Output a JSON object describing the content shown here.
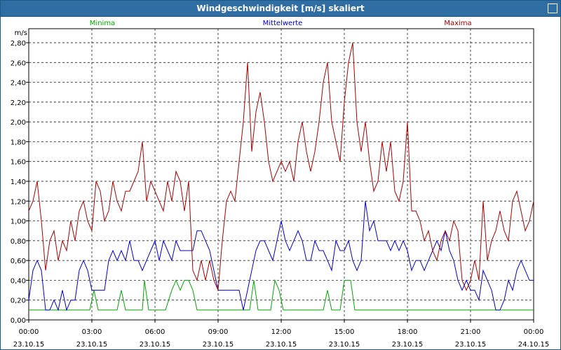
{
  "window": {
    "title": "Windgeschwindigkeit [m/s] skaliert"
  },
  "chart_data": {
    "type": "line",
    "title": "Windgeschwindigkeit [m/s] skaliert",
    "ylabel": "m/s",
    "xlabel": "",
    "ylim": [
      0,
      2.8
    ],
    "yticks": [
      0,
      0.2,
      0.4,
      0.6,
      0.8,
      1.0,
      1.2,
      1.4,
      1.6,
      1.8,
      2.0,
      2.2,
      2.4,
      2.6,
      2.8
    ],
    "ytick_labels": [
      "0,00",
      "0,20",
      "0,40",
      "0,60",
      "0,80",
      "1,00",
      "1,20",
      "1,40",
      "1,60",
      "1,80",
      "2,00",
      "2,20",
      "2,40",
      "2,60",
      "2,80"
    ],
    "xlim": [
      0,
      24
    ],
    "xticks": [
      0,
      3,
      6,
      9,
      12,
      15,
      18,
      21,
      24
    ],
    "xtick_times": [
      "00:00",
      "03:00",
      "06:00",
      "09:00",
      "12:00",
      "15:00",
      "18:00",
      "21:00",
      "00:00"
    ],
    "xtick_dates": [
      "23.10.15",
      "23.10.15",
      "23.10.15",
      "23.10.15",
      "23.10.15",
      "23.10.15",
      "23.10.15",
      "23.10.15",
      "24.10.15"
    ],
    "grid": true,
    "legend_position": "top",
    "series": [
      {
        "name": "Minima",
        "color": "#00aa00",
        "x": [
          0,
          2.9,
          3.1,
          3.3,
          4.2,
          4.4,
          4.6,
          5.4,
          5.5,
          5.7,
          6.5,
          6.8,
          7.0,
          7.2,
          7.4,
          7.6,
          7.8,
          8.0,
          10.5,
          10.7,
          10.9,
          11.5,
          11.7,
          11.9,
          12.1,
          12.3,
          14.0,
          14.2,
          14.4,
          14.8,
          15.0,
          15.3,
          15.5,
          24.0
        ],
        "values": [
          0.1,
          0.1,
          0.3,
          0.1,
          0.1,
          0.3,
          0.1,
          0.1,
          0.4,
          0.1,
          0.1,
          0.3,
          0.4,
          0.3,
          0.4,
          0.4,
          0.3,
          0.1,
          0.1,
          0.4,
          0.1,
          0.1,
          0.4,
          0.3,
          0.1,
          0.1,
          0.1,
          0.3,
          0.1,
          0.1,
          0.4,
          0.4,
          0.1,
          0.1
        ]
      },
      {
        "name": "Mittelwerte",
        "color": "#0000cc",
        "x": [
          0,
          0.2,
          0.4,
          0.6,
          0.8,
          1.0,
          1.2,
          1.4,
          1.6,
          1.8,
          2.0,
          2.2,
          2.4,
          2.6,
          2.8,
          3.0,
          3.2,
          3.4,
          3.6,
          3.8,
          4.0,
          4.2,
          4.4,
          4.6,
          4.8,
          5.0,
          5.2,
          5.4,
          5.6,
          5.8,
          6.0,
          6.2,
          6.4,
          6.6,
          6.8,
          7.0,
          7.2,
          7.4,
          7.6,
          7.8,
          8.0,
          8.2,
          8.4,
          8.6,
          8.8,
          9.0,
          9.2,
          9.4,
          9.6,
          9.8,
          10.0,
          10.2,
          10.4,
          10.6,
          10.8,
          11.0,
          11.2,
          11.4,
          11.6,
          11.8,
          12.0,
          12.2,
          12.4,
          12.6,
          12.8,
          13.0,
          13.2,
          13.4,
          13.6,
          13.8,
          14.0,
          14.2,
          14.4,
          14.6,
          14.8,
          15.0,
          15.2,
          15.4,
          15.6,
          15.8,
          16.0,
          16.2,
          16.4,
          16.6,
          16.8,
          17.0,
          17.2,
          17.4,
          17.6,
          17.8,
          18.0,
          18.2,
          18.4,
          18.6,
          18.8,
          19.0,
          19.2,
          19.4,
          19.6,
          19.8,
          20.0,
          20.2,
          20.4,
          20.6,
          20.8,
          21.0,
          21.2,
          21.4,
          21.6,
          21.8,
          22.0,
          22.2,
          22.4,
          22.6,
          22.8,
          23.0,
          23.2,
          23.4,
          23.6,
          23.8,
          24.0
        ],
        "values": [
          0.2,
          0.5,
          0.6,
          0.5,
          0.1,
          0.1,
          0.2,
          0.1,
          0.3,
          0.1,
          0.2,
          0.2,
          0.5,
          0.6,
          0.5,
          0.3,
          0.3,
          0.3,
          0.3,
          0.6,
          0.7,
          0.6,
          0.7,
          0.6,
          0.8,
          0.6,
          0.6,
          0.5,
          0.6,
          0.7,
          0.8,
          0.6,
          0.8,
          0.7,
          0.6,
          0.8,
          0.7,
          0.7,
          0.7,
          0.7,
          0.9,
          0.9,
          0.8,
          0.7,
          0.5,
          0.3,
          0.3,
          0.3,
          0.3,
          0.3,
          0.3,
          0.1,
          0.3,
          0.5,
          0.7,
          0.8,
          0.8,
          0.7,
          0.6,
          0.8,
          1.0,
          0.8,
          0.7,
          0.8,
          0.9,
          0.8,
          0.6,
          0.6,
          0.8,
          0.7,
          0.7,
          0.6,
          0.5,
          0.8,
          0.7,
          0.7,
          0.8,
          0.6,
          0.5,
          0.6,
          1.2,
          0.9,
          1.0,
          0.8,
          0.8,
          0.8,
          0.7,
          0.8,
          0.7,
          0.8,
          0.7,
          0.5,
          0.6,
          0.6,
          0.5,
          0.6,
          0.7,
          0.8,
          0.7,
          0.9,
          0.7,
          0.6,
          0.4,
          0.3,
          0.4,
          0.3,
          0.3,
          0.2,
          0.5,
          0.4,
          0.3,
          0.1,
          0.1,
          0.2,
          0.4,
          0.3,
          0.5,
          0.6,
          0.5,
          0.4,
          0.4
        ],
        "note": ""
      },
      {
        "name": "Maxima",
        "color": "#aa0000",
        "x": [
          0,
          0.2,
          0.4,
          0.6,
          0.8,
          1.0,
          1.2,
          1.4,
          1.6,
          1.8,
          2.0,
          2.2,
          2.4,
          2.6,
          2.8,
          3.0,
          3.2,
          3.4,
          3.6,
          3.8,
          4.0,
          4.2,
          4.4,
          4.6,
          4.8,
          5.0,
          5.2,
          5.4,
          5.6,
          5.8,
          6.0,
          6.2,
          6.4,
          6.6,
          6.8,
          7.0,
          7.2,
          7.4,
          7.6,
          7.8,
          8.0,
          8.2,
          8.4,
          8.6,
          8.8,
          9.0,
          9.2,
          9.4,
          9.6,
          9.8,
          10.0,
          10.2,
          10.4,
          10.6,
          10.8,
          11.0,
          11.2,
          11.4,
          11.6,
          11.8,
          12.0,
          12.2,
          12.4,
          12.6,
          12.8,
          13.0,
          13.2,
          13.4,
          13.6,
          13.8,
          14.0,
          14.2,
          14.4,
          14.6,
          14.8,
          15.0,
          15.2,
          15.4,
          15.6,
          15.8,
          16.0,
          16.2,
          16.4,
          16.6,
          16.8,
          17.0,
          17.2,
          17.4,
          17.6,
          17.8,
          18.0,
          18.2,
          18.4,
          18.6,
          18.8,
          19.0,
          19.2,
          19.4,
          19.6,
          19.8,
          20.0,
          20.2,
          20.4,
          20.6,
          20.8,
          21.0,
          21.2,
          21.4,
          21.6,
          21.8,
          22.0,
          22.2,
          22.4,
          22.6,
          22.8,
          23.0,
          23.2,
          23.4,
          23.6,
          23.8,
          24.0
        ],
        "values": [
          1.1,
          1.2,
          1.4,
          1.0,
          0.5,
          0.8,
          0.9,
          0.6,
          0.8,
          0.7,
          1.0,
          0.8,
          1.1,
          1.2,
          1.0,
          0.9,
          1.4,
          1.3,
          1.0,
          1.1,
          1.4,
          1.2,
          1.1,
          1.3,
          1.3,
          1.4,
          1.5,
          1.8,
          1.2,
          1.4,
          1.3,
          1.2,
          1.1,
          1.4,
          1.2,
          1.5,
          1.4,
          1.1,
          1.4,
          0.5,
          0.4,
          0.6,
          0.4,
          0.6,
          0.4,
          0.3,
          0.8,
          1.2,
          1.3,
          1.2,
          1.6,
          2.0,
          2.6,
          1.7,
          2.1,
          2.3,
          2.0,
          1.6,
          1.4,
          1.5,
          1.6,
          1.5,
          1.6,
          1.4,
          1.8,
          2.0,
          1.7,
          1.5,
          1.7,
          2.0,
          2.4,
          2.6,
          2.0,
          1.8,
          1.6,
          2.2,
          2.6,
          2.8,
          2.0,
          1.7,
          2.0,
          1.6,
          1.3,
          1.4,
          1.8,
          1.5,
          1.8,
          1.3,
          1.2,
          1.4,
          2.0,
          1.1,
          1.1,
          1.0,
          0.8,
          0.9,
          0.7,
          0.6,
          0.8,
          0.9,
          0.8,
          1.0,
          0.9,
          0.4,
          0.3,
          0.4,
          0.6,
          0.4,
          1.2,
          0.6,
          0.8,
          0.9,
          1.1,
          0.9,
          0.8,
          1.2,
          1.3,
          1.1,
          0.9,
          1.0,
          1.2
        ],
        "note": ""
      }
    ]
  }
}
